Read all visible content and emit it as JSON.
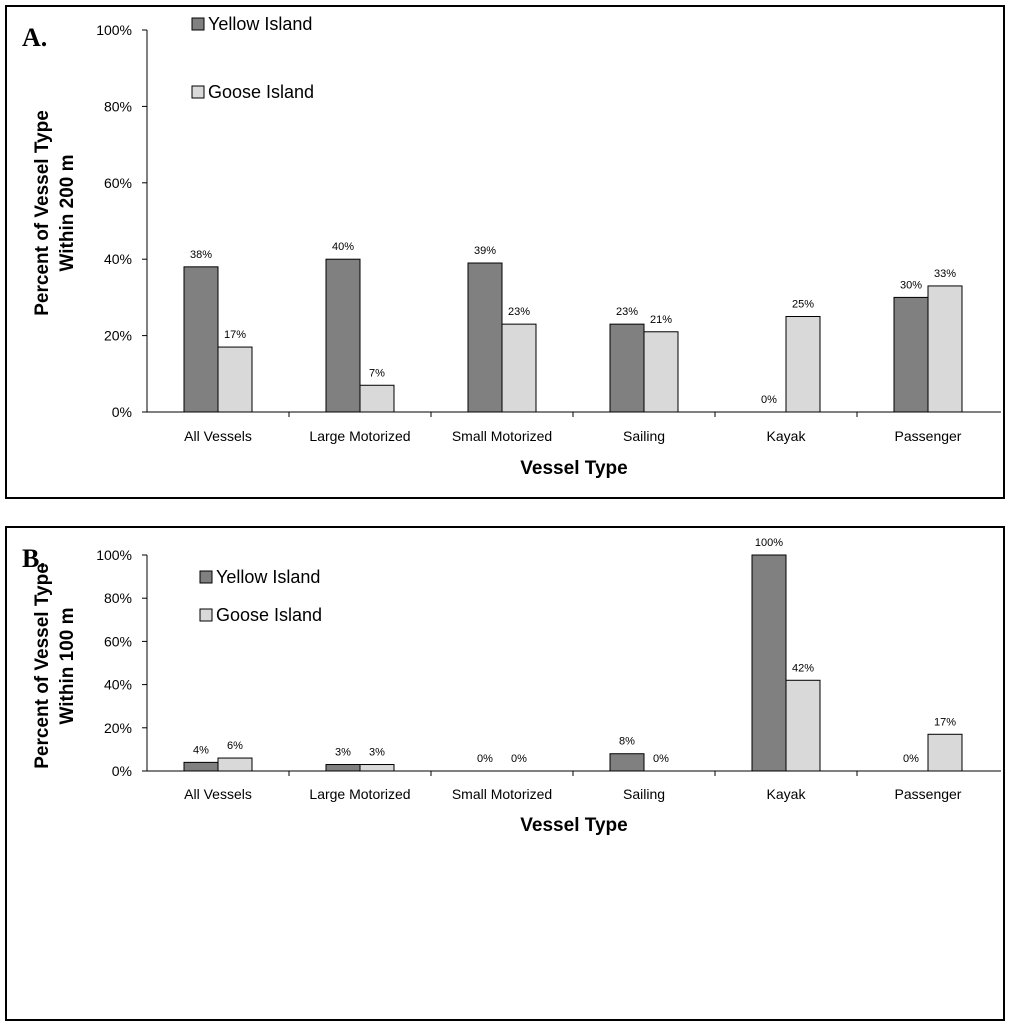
{
  "chart_data": [
    {
      "type": "bar",
      "panel_label": "A.",
      "categories": [
        "All Vessels",
        "Large Motorized",
        "Small Motorized",
        "Sailing",
        "Kayak",
        "Passenger"
      ],
      "series": [
        {
          "name": "Yellow Island",
          "color": "#808080",
          "values": [
            38,
            40,
            39,
            23,
            0,
            30
          ],
          "labels": [
            "38%",
            "40%",
            "39%",
            "23%",
            "0%",
            "30%"
          ]
        },
        {
          "name": "Goose Island",
          "color": "#d9d9d9",
          "values": [
            17,
            7,
            23,
            21,
            25,
            33
          ],
          "labels": [
            "17%",
            "7%",
            "23%",
            "21%",
            "25%",
            "33%"
          ]
        }
      ],
      "xlabel": "Vessel Type",
      "ylabel_line1": "Percent of Vessel Type",
      "ylabel_line2": "Within 200 m",
      "ylim": [
        0,
        100
      ],
      "yticks": [
        0,
        20,
        40,
        60,
        80,
        100
      ],
      "ytick_labels": [
        "0%",
        "20%",
        "40%",
        "60%",
        "80%",
        "100%"
      ],
      "grid": false,
      "legend_position": "top-left"
    },
    {
      "type": "bar",
      "panel_label": "B.",
      "categories": [
        "All Vessels",
        "Large Motorized",
        "Small Motorized",
        "Sailing",
        "Kayak",
        "Passenger"
      ],
      "series": [
        {
          "name": "Yellow Island",
          "color": "#808080",
          "values": [
            4,
            3,
            0,
            8,
            100,
            0
          ],
          "labels": [
            "4%",
            "3%",
            "0%",
            "8%",
            "100%",
            "0%"
          ]
        },
        {
          "name": "Goose Island",
          "color": "#d9d9d9",
          "values": [
            6,
            3,
            0,
            0,
            42,
            17
          ],
          "labels": [
            "6%",
            "3%",
            "0%",
            "0%",
            "42%",
            "17%"
          ]
        }
      ],
      "xlabel": "Vessel Type",
      "ylabel_line1": "Percent of Vessel Type",
      "ylabel_line2": "Within 100 m",
      "ylim": [
        0,
        100
      ],
      "yticks": [
        0,
        20,
        40,
        60,
        80,
        100
      ],
      "ytick_labels": [
        "0%",
        "20%",
        "40%",
        "60%",
        "80%",
        "100%"
      ],
      "grid": false,
      "legend_position": "top-left"
    }
  ]
}
